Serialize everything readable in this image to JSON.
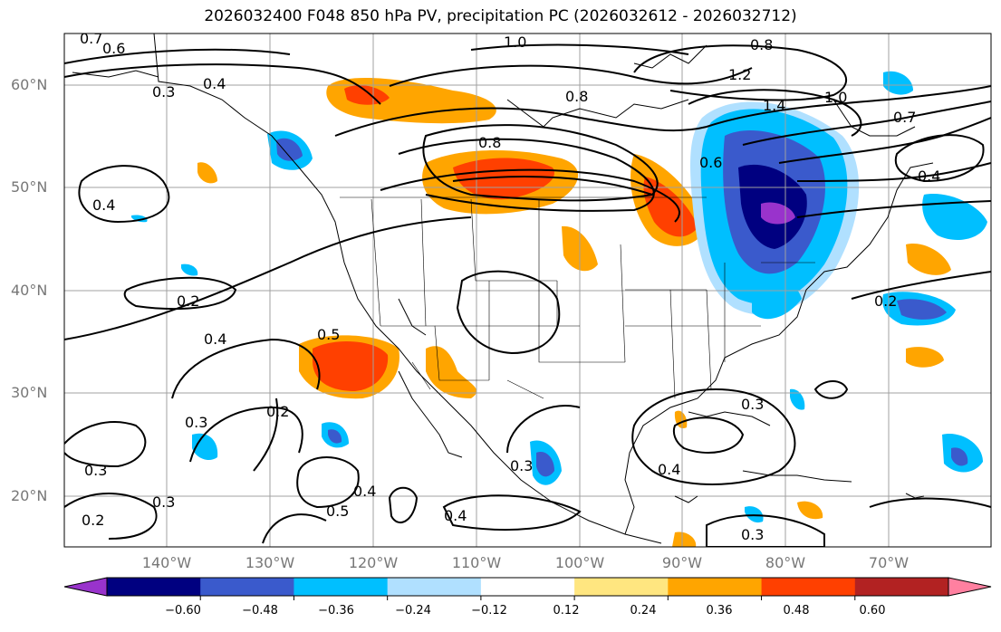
{
  "title": "2026032400 F048 850 hPa PV, precipitation PC (2026032612 - 2026032712)",
  "map": {
    "lat_labels": [
      "60°N",
      "50°N",
      "40°N",
      "30°N",
      "20°N"
    ],
    "lon_labels": [
      "140°W",
      "130°W",
      "120°W",
      "110°W",
      "100°W",
      "90°W",
      "80°W",
      "70°W"
    ],
    "contour_labels": [
      "0.7",
      "0.6",
      "0.4",
      "0.3",
      "1.0",
      "0.8",
      "1.2",
      "1.4",
      "1.0",
      "0.7",
      "0.4",
      "0.8",
      "0.6",
      "0.8",
      "0.4",
      "0.2",
      "0.4",
      "0.2",
      "0.3",
      "0.5",
      "0.3",
      "0.2",
      "0.3",
      "0.4",
      "0.5",
      "0.4",
      "0.3",
      "0.3",
      "0.4",
      "0.2",
      "0.3"
    ],
    "lines_color": "#000000",
    "grid_color": "#a0a0a0"
  },
  "colorbar": {
    "ticks": [
      "−0.60",
      "−0.48",
      "−0.36",
      "−0.24",
      "−0.12",
      "0.12",
      "0.24",
      "0.36",
      "0.48",
      "0.60"
    ],
    "colors": [
      "#9933cc",
      "#000080",
      "#3a5acc",
      "#00bfff",
      "#b0e0ff",
      "#ffffff",
      "#ffe680",
      "#ffa500",
      "#ff4000",
      "#b22222",
      "#ff80a0"
    ]
  }
}
